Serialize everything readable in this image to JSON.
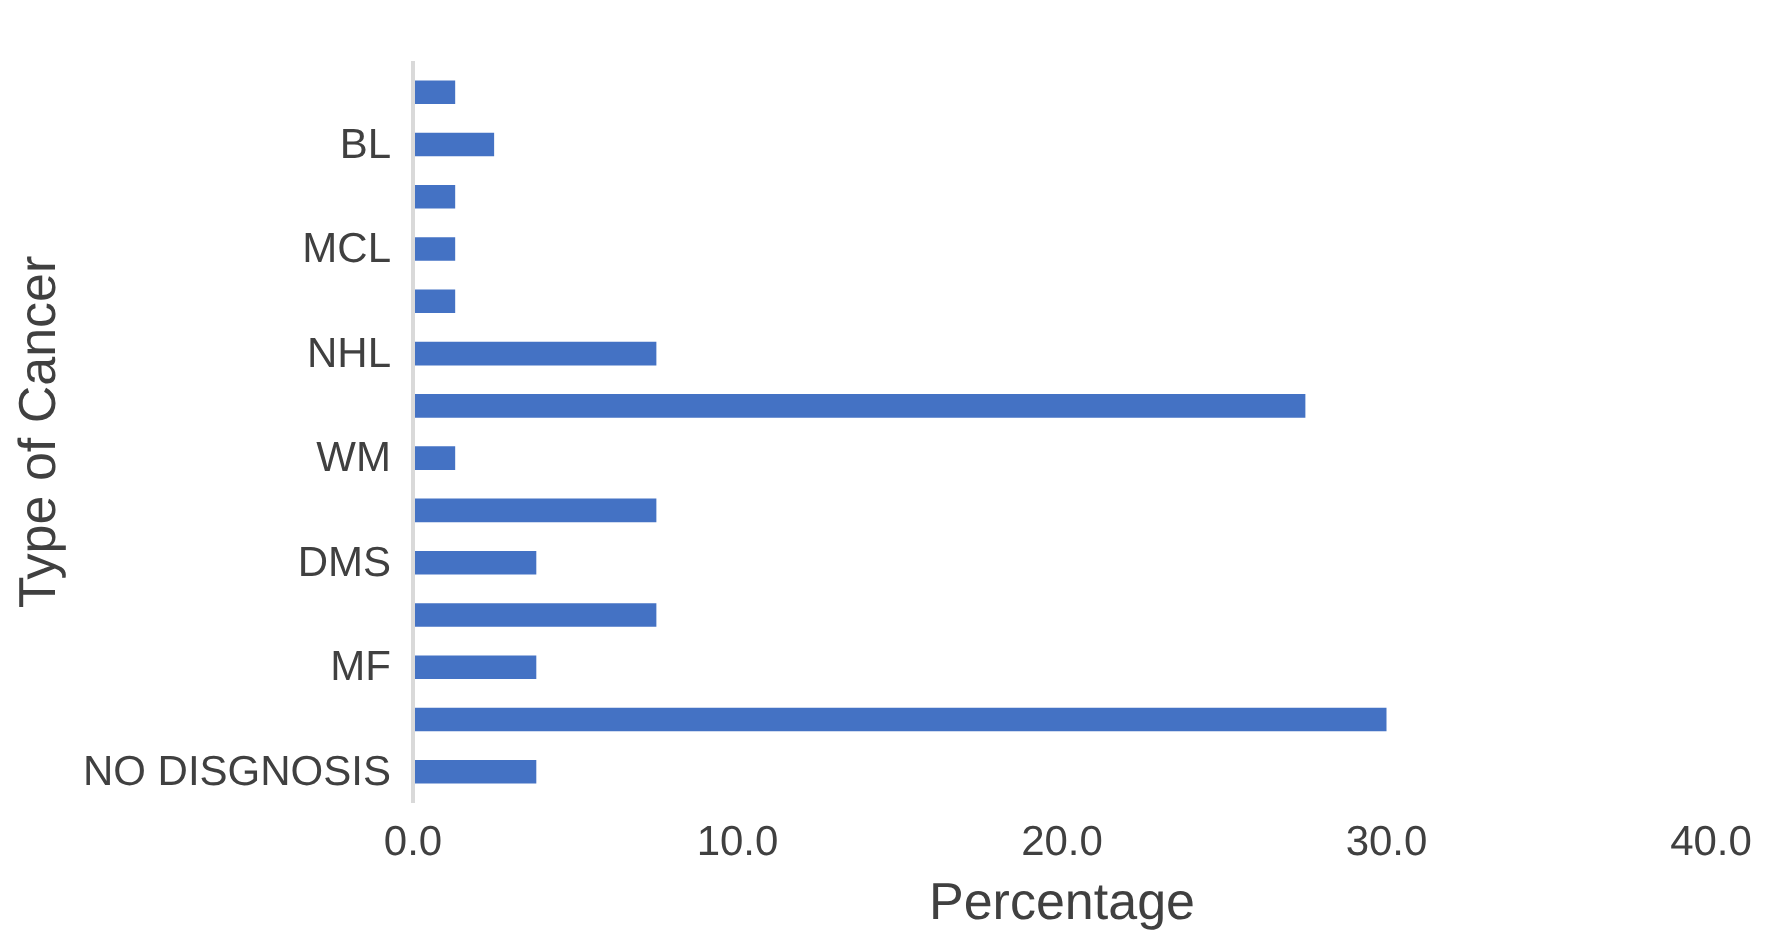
{
  "chart_data": {
    "type": "bar",
    "orientation": "horizontal",
    "xlabel": "Percentage",
    "ylabel": "Type of Cancer",
    "categories": [
      null,
      "BL",
      null,
      "MCL",
      null,
      "NHL",
      null,
      "WM",
      null,
      "DMS",
      null,
      "MF",
      null,
      "NO DISGNOSIS"
    ],
    "values": [
      1.3,
      2.5,
      1.3,
      1.3,
      1.3,
      7.5,
      27.5,
      1.3,
      7.5,
      3.8,
      7.5,
      3.8,
      30.0,
      3.8
    ],
    "color": "#4472c4",
    "xlim": [
      0,
      40
    ],
    "xticks": [
      {
        "value": 0,
        "label": "0.0"
      },
      {
        "value": 10,
        "label": "10.0"
      },
      {
        "value": 20,
        "label": "20.0"
      },
      {
        "value": 30,
        "label": "30.0"
      },
      {
        "value": 40,
        "label": "40.0"
      }
    ],
    "grid": false
  }
}
